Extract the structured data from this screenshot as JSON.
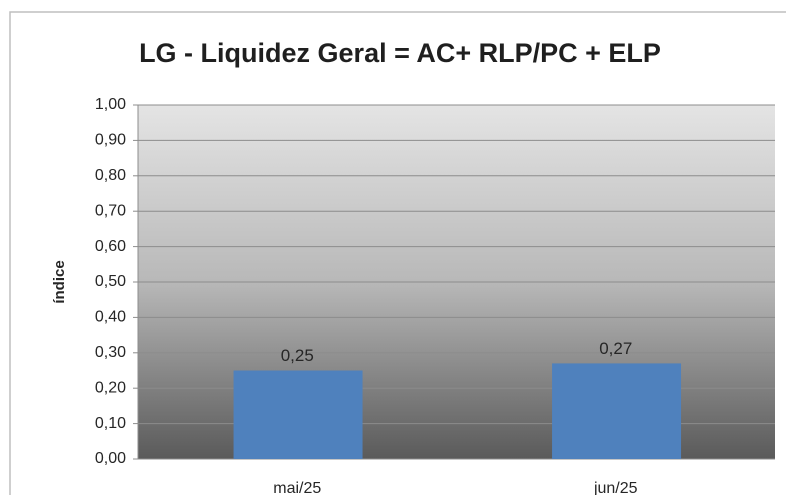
{
  "chart_data": {
    "type": "bar",
    "title": "LG - Liquidez Geral = AC+ RLP/PC + ELP",
    "y_label": "índice",
    "categories": [
      "mai/25",
      "jun/25"
    ],
    "values": [
      0.25,
      0.27
    ],
    "value_labels": [
      "0,25",
      "0,27"
    ],
    "color": "#4f81bd",
    "ylim": [
      0,
      1
    ],
    "yticks": [
      {
        "value": 0,
        "label": "0,00"
      },
      {
        "value": 0.1,
        "label": "0,10"
      },
      {
        "value": 0.2,
        "label": "0,20"
      },
      {
        "value": 0.3,
        "label": "0,30"
      },
      {
        "value": 0.4,
        "label": "0,40"
      },
      {
        "value": 0.5,
        "label": "0,50"
      },
      {
        "value": 0.6,
        "label": "0,60"
      },
      {
        "value": 0.7,
        "label": "0,70"
      },
      {
        "value": 0.8,
        "label": "0,80"
      },
      {
        "value": 0.9,
        "label": "0,90"
      },
      {
        "value": 1,
        "label": "1,00"
      }
    ],
    "grid": true
  }
}
